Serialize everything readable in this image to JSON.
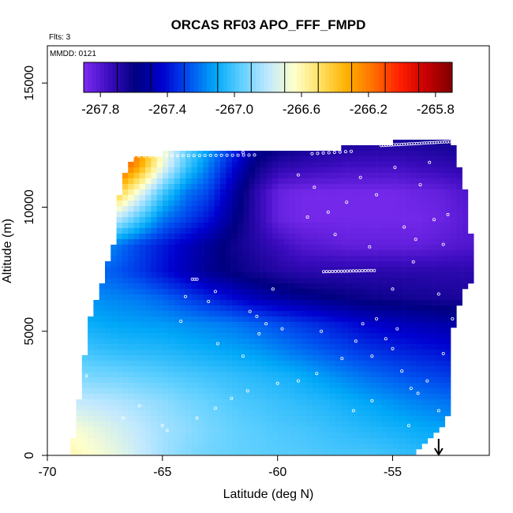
{
  "chart_data": {
    "type": "heatmap",
    "title": "ORCAS RF03 APO_FFF_FMPD",
    "subtitle_flights": "Flts: 3",
    "subtitle_date": "MMDD: 0121",
    "xlabel": "Latitude (deg N)",
    "ylabel": "Altitude (m)",
    "xlim": [
      -70,
      -50.8
    ],
    "ylim": [
      0,
      16500
    ],
    "x_ticks": [
      -70,
      -65,
      -60,
      -55
    ],
    "x_tick_labels": [
      "-70",
      "-65",
      "-60",
      "-55"
    ],
    "y_ticks": [
      0,
      5000,
      10000,
      15000
    ],
    "y_tick_labels": [
      "0",
      "5000",
      "10000",
      "15000"
    ],
    "colorbar": {
      "min": -267.9,
      "max": -265.7,
      "ticks": [
        -267.8,
        -267.4,
        -267.0,
        -266.6,
        -266.2,
        -265.8
      ],
      "tick_labels": [
        "-267.8",
        "-267.4",
        "-267.0",
        "-266.6",
        "-266.2",
        "-265.8"
      ],
      "color_stops": [
        "#7b2cf0",
        "#3a0bbd",
        "#000080",
        "#0000d0",
        "#0050f0",
        "#00a8f8",
        "#60d0ff",
        "#c0e8ff",
        "#ffffcc",
        "#ffe060",
        "#ffb000",
        "#ff7000",
        "#ff2000",
        "#c80000",
        "#800000"
      ]
    },
    "field": {
      "lat_range": [
        -69,
        -51.9
      ],
      "alt_range": [
        0,
        12700
      ],
      "top_boundary": [
        [
          -69.0,
          0
        ],
        [
          -68.8,
          1200
        ],
        [
          -68.6,
          2300
        ],
        [
          -68.4,
          3900
        ],
        [
          -68.2,
          5500
        ],
        [
          -67.9,
          6200
        ],
        [
          -67.5,
          7200
        ],
        [
          -67.3,
          8000
        ],
        [
          -67.1,
          8600
        ],
        [
          -67.0,
          9000
        ],
        [
          -66.9,
          10300
        ],
        [
          -66.7,
          11000
        ],
        [
          -66.5,
          11800
        ],
        [
          -66.2,
          12100
        ],
        [
          -62.0,
          12300
        ],
        [
          -58.0,
          12300
        ],
        [
          -55.0,
          12600
        ],
        [
          -52.5,
          12800
        ],
        [
          -52.2,
          12000
        ],
        [
          -51.8,
          10500
        ],
        [
          -51.6,
          9000
        ],
        [
          -51.6,
          7000
        ],
        [
          -52.0,
          6500
        ],
        [
          -52.4,
          5000
        ],
        [
          -52.4,
          3000
        ],
        [
          -52.6,
          1500
        ],
        [
          -52.9,
          1200
        ],
        [
          -53.3,
          700
        ],
        [
          -54.0,
          0
        ]
      ],
      "values": [
        [
          -266.6,
          -266.65,
          -266.7,
          -266.78,
          -266.85,
          -266.9,
          -266.93,
          -266.95,
          -266.96,
          -266.97,
          -266.98,
          -266.99,
          -267.0,
          -267.0,
          -267.02,
          -267.04,
          -267.06,
          -267.08
        ],
        [
          -266.65,
          -266.7,
          -266.75,
          -266.8,
          -266.85,
          -266.88,
          -266.92,
          -266.95,
          -266.97,
          -266.99,
          -267.0,
          -267.02,
          -267.04,
          -267.06,
          -267.08,
          -267.1,
          -267.12,
          -267.14
        ],
        [
          -266.78,
          -266.8,
          -266.82,
          -266.85,
          -266.88,
          -266.92,
          -266.95,
          -266.98,
          -267.0,
          -267.02,
          -267.04,
          -267.06,
          -267.09,
          -267.12,
          -267.15,
          -267.18,
          -267.2,
          -267.22
        ],
        [
          -266.9,
          -266.92,
          -266.93,
          -266.95,
          -266.97,
          -266.99,
          -267.01,
          -267.03,
          -267.05,
          -267.07,
          -267.1,
          -267.14,
          -267.18,
          -267.22,
          -267.25,
          -267.28,
          -267.3,
          -267.32
        ],
        [
          -267.0,
          -267.02,
          -267.04,
          -267.05,
          -267.06,
          -267.08,
          -267.1,
          -267.12,
          -267.14,
          -267.18,
          -267.22,
          -267.26,
          -267.3,
          -267.33,
          -267.36,
          -267.38,
          -267.4,
          -267.42
        ],
        [
          -267.08,
          -267.1,
          -267.12,
          -267.13,
          -267.14,
          -267.16,
          -267.18,
          -267.2,
          -267.24,
          -267.28,
          -267.32,
          -267.36,
          -267.4,
          -267.44,
          -267.46,
          -267.48,
          -267.5,
          -267.52
        ],
        [
          -267.14,
          -267.16,
          -267.18,
          -267.2,
          -267.24,
          -267.3,
          -267.36,
          -267.42,
          -267.48,
          -267.52,
          -267.55,
          -267.58,
          -267.6,
          -267.62,
          -267.63,
          -267.64,
          -267.65,
          -267.66
        ],
        [
          -267.2,
          -267.22,
          -267.26,
          -267.32,
          -267.4,
          -267.48,
          -267.55,
          -267.6,
          -267.64,
          -267.68,
          -267.7,
          -267.7,
          -267.7,
          -267.7,
          -267.7,
          -267.7,
          -267.7,
          -267.7
        ],
        [
          -267.0,
          -267.1,
          -267.2,
          -267.3,
          -267.38,
          -267.46,
          -267.54,
          -267.62,
          -267.68,
          -267.74,
          -267.8,
          -267.82,
          -267.84,
          -267.84,
          -267.84,
          -267.84,
          -267.82,
          -267.8
        ],
        [
          -266.4,
          -266.6,
          -266.8,
          -267.0,
          -267.2,
          -267.3,
          -267.4,
          -267.55,
          -267.7,
          -267.85,
          -267.88,
          -267.88,
          -267.88,
          -267.88,
          -267.88,
          -267.88,
          -267.86,
          -267.82
        ],
        [
          -265.9,
          -266.1,
          -266.4,
          -266.7,
          -267.0,
          -267.2,
          -267.3,
          -267.5,
          -267.7,
          -267.85,
          -267.88,
          -267.88,
          -267.88,
          -267.88,
          -267.88,
          -267.86,
          -267.84,
          -267.8
        ],
        [
          -265.8,
          -265.9,
          -266.05,
          -266.3,
          -266.7,
          -267.0,
          -267.2,
          -267.4,
          -267.6,
          -267.7,
          -267.72,
          -267.74,
          -267.76,
          -267.76,
          -267.76,
          -267.74,
          -267.72,
          -267.7
        ],
        [
          -265.75,
          -265.8,
          -265.95,
          -266.2,
          -266.6,
          -266.9,
          -267.1,
          -267.3,
          -267.5,
          -267.55,
          -267.6,
          -267.62,
          -267.64,
          -267.65,
          -267.65,
          -267.64,
          -267.63,
          -267.62
        ]
      ]
    },
    "samples": [
      {
        "lat": -66.5,
        "alt": 12050,
        "count": 24,
        "lat_end": -61.0,
        "alt_end": 12100
      },
      {
        "lat": -58.5,
        "alt": 12150,
        "count": 8,
        "lat_end": -56.8,
        "alt_end": 12250
      },
      {
        "lat": -55.5,
        "alt": 12480,
        "count": 30,
        "lat_end": -52.3,
        "alt_end": 12650
      },
      {
        "lat": -58.0,
        "alt": 7400,
        "count": 18,
        "lat_end": -55.8,
        "alt_end": 7450
      },
      {
        "lat": -63.7,
        "alt": 7100,
        "count": 3,
        "lat_end": -63.5,
        "alt_end": 7100
      }
    ],
    "scatter_points": [
      [
        -61.5,
        12200
      ],
      [
        -59.1,
        11300
      ],
      [
        -58.4,
        10800
      ],
      [
        -57.8,
        9800
      ],
      [
        -57.0,
        10200
      ],
      [
        -56.4,
        11200
      ],
      [
        -55.7,
        10500
      ],
      [
        -54.5,
        9200
      ],
      [
        -53.8,
        10900
      ],
      [
        -58.7,
        9600
      ],
      [
        -57.5,
        8900
      ],
      [
        -56.0,
        8400
      ],
      [
        -54.0,
        8700
      ],
      [
        -53.2,
        9500
      ],
      [
        -52.6,
        9700
      ],
      [
        -52.8,
        8500
      ],
      [
        -53.4,
        11800
      ],
      [
        -54.9,
        11600
      ],
      [
        -54.1,
        7800
      ],
      [
        -55.0,
        6700
      ],
      [
        -53.0,
        6500
      ],
      [
        -56.3,
        5300
      ],
      [
        -55.3,
        4700
      ],
      [
        -54.6,
        3400
      ],
      [
        -54.2,
        2700
      ],
      [
        -53.0,
        1800
      ],
      [
        -54.3,
        1200
      ],
      [
        -55.0,
        4300
      ],
      [
        -54.8,
        5100
      ],
      [
        -55.7,
        5500
      ],
      [
        -55.9,
        4000
      ],
      [
        -52.8,
        4100
      ],
      [
        -52.4,
        5500
      ],
      [
        -64.0,
        6400
      ],
      [
        -63.0,
        6200
      ],
      [
        -62.7,
        6600
      ],
      [
        -61.2,
        5800
      ],
      [
        -60.9,
        5600
      ],
      [
        -60.5,
        5300
      ],
      [
        -59.8,
        5100
      ],
      [
        -58.1,
        5000
      ],
      [
        -56.6,
        4600
      ],
      [
        -57.2,
        3900
      ],
      [
        -58.3,
        3300
      ],
      [
        -59.1,
        3000
      ],
      [
        -60.0,
        2900
      ],
      [
        -61.3,
        2600
      ],
      [
        -62.0,
        2300
      ],
      [
        -62.7,
        1900
      ],
      [
        -63.5,
        1500
      ],
      [
        -65.0,
        1200
      ],
      [
        -66.7,
        1500
      ],
      [
        -68.3,
        3200
      ],
      [
        -64.2,
        5400
      ],
      [
        -62.6,
        4500
      ],
      [
        -61.5,
        4000
      ],
      [
        -60.2,
        6700
      ],
      [
        -55.9,
        2200
      ],
      [
        -56.7,
        1800
      ],
      [
        -53.9,
        2500
      ],
      [
        -53.5,
        3000
      ],
      [
        -60.8,
        4900
      ],
      [
        -66.0,
        2000
      ],
      [
        -64.8,
        1000
      ]
    ],
    "arrow_lat": -53.0
  }
}
